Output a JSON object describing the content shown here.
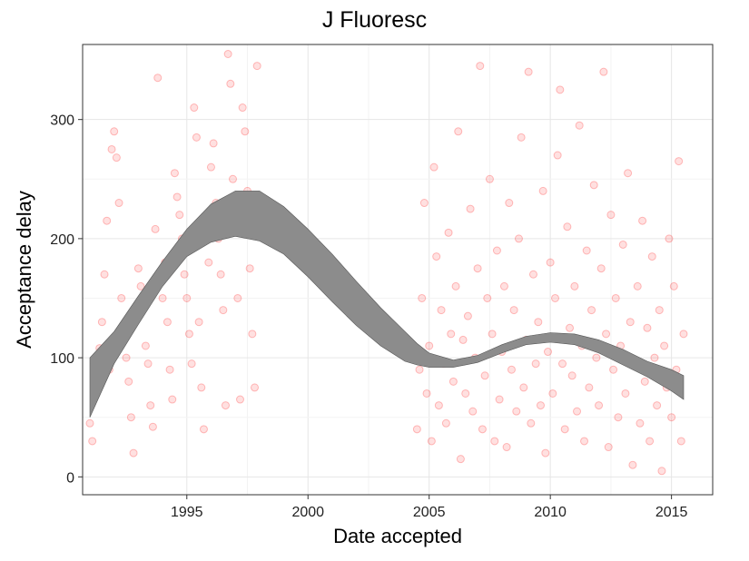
{
  "chart_data": {
    "type": "scatter",
    "title": "J Fluoresc",
    "xlabel": "Date accepted",
    "ylabel": "Acceptance delay",
    "xlim": [
      1990.7,
      2016.7
    ],
    "ylim": [
      -15,
      363
    ],
    "x_ticks": [
      1995,
      2000,
      2005,
      2010,
      2015
    ],
    "x_tick_labels": [
      "1995",
      "2000",
      "2005",
      "2010",
      "2015"
    ],
    "y_ticks": [
      0,
      100,
      200,
      300
    ],
    "y_tick_labels": [
      "0",
      "100",
      "200",
      "300"
    ],
    "grid": true,
    "legend": "none",
    "points": [
      [
        1991.0,
        45
      ],
      [
        1991.1,
        30
      ],
      [
        1991.2,
        78
      ],
      [
        1991.4,
        108
      ],
      [
        1991.5,
        130
      ],
      [
        1991.6,
        170
      ],
      [
        1991.7,
        215
      ],
      [
        1991.8,
        90
      ],
      [
        1991.9,
        275
      ],
      [
        1992.0,
        290
      ],
      [
        1992.1,
        268
      ],
      [
        1992.2,
        230
      ],
      [
        1992.3,
        150
      ],
      [
        1992.4,
        120
      ],
      [
        1992.5,
        100
      ],
      [
        1992.6,
        80
      ],
      [
        1992.7,
        50
      ],
      [
        1992.8,
        20
      ],
      [
        1992.9,
        140
      ],
      [
        1993.0,
        175
      ],
      [
        1993.1,
        160
      ],
      [
        1993.2,
        145
      ],
      [
        1993.3,
        110
      ],
      [
        1993.4,
        95
      ],
      [
        1993.5,
        60
      ],
      [
        1993.6,
        42
      ],
      [
        1993.7,
        208
      ],
      [
        1993.8,
        335
      ],
      [
        1994.0,
        150
      ],
      [
        1994.1,
        180
      ],
      [
        1994.2,
        130
      ],
      [
        1994.3,
        90
      ],
      [
        1994.4,
        65
      ],
      [
        1994.5,
        255
      ],
      [
        1994.6,
        235
      ],
      [
        1994.7,
        220
      ],
      [
        1994.8,
        200
      ],
      [
        1994.9,
        170
      ],
      [
        1995.0,
        150
      ],
      [
        1995.1,
        120
      ],
      [
        1995.2,
        95
      ],
      [
        1995.3,
        310
      ],
      [
        1995.4,
        285
      ],
      [
        1995.5,
        130
      ],
      [
        1995.6,
        75
      ],
      [
        1995.7,
        40
      ],
      [
        1995.8,
        215
      ],
      [
        1995.9,
        180
      ],
      [
        1996.0,
        260
      ],
      [
        1996.1,
        280
      ],
      [
        1996.2,
        230
      ],
      [
        1996.3,
        200
      ],
      [
        1996.4,
        170
      ],
      [
        1996.5,
        140
      ],
      [
        1996.6,
        60
      ],
      [
        1996.7,
        355
      ],
      [
        1996.8,
        330
      ],
      [
        1996.9,
        250
      ],
      [
        1997.0,
        225
      ],
      [
        1997.1,
        150
      ],
      [
        1997.2,
        65
      ],
      [
        1997.3,
        310
      ],
      [
        1997.4,
        290
      ],
      [
        1997.5,
        240
      ],
      [
        1997.6,
        175
      ],
      [
        1997.7,
        120
      ],
      [
        1997.8,
        75
      ],
      [
        1997.9,
        345
      ],
      [
        2004.5,
        40
      ],
      [
        2004.6,
        90
      ],
      [
        2004.7,
        150
      ],
      [
        2004.8,
        230
      ],
      [
        2004.9,
        70
      ],
      [
        2005.0,
        110
      ],
      [
        2005.1,
        30
      ],
      [
        2005.2,
        260
      ],
      [
        2005.3,
        185
      ],
      [
        2005.4,
        60
      ],
      [
        2005.5,
        140
      ],
      [
        2005.6,
        95
      ],
      [
        2005.7,
        45
      ],
      [
        2005.8,
        205
      ],
      [
        2005.9,
        120
      ],
      [
        2006.0,
        80
      ],
      [
        2006.1,
        160
      ],
      [
        2006.2,
        290
      ],
      [
        2006.3,
        15
      ],
      [
        2006.4,
        115
      ],
      [
        2006.5,
        70
      ],
      [
        2006.6,
        135
      ],
      [
        2006.7,
        225
      ],
      [
        2006.8,
        55
      ],
      [
        2006.9,
        100
      ],
      [
        2007.0,
        175
      ],
      [
        2007.1,
        345
      ],
      [
        2007.2,
        40
      ],
      [
        2007.3,
        85
      ],
      [
        2007.4,
        150
      ],
      [
        2007.5,
        250
      ],
      [
        2007.6,
        120
      ],
      [
        2007.7,
        30
      ],
      [
        2007.8,
        190
      ],
      [
        2007.9,
        65
      ],
      [
        2008.0,
        105
      ],
      [
        2008.1,
        160
      ],
      [
        2008.2,
        25
      ],
      [
        2008.3,
        230
      ],
      [
        2008.4,
        90
      ],
      [
        2008.5,
        140
      ],
      [
        2008.6,
        55
      ],
      [
        2008.7,
        200
      ],
      [
        2008.8,
        285
      ],
      [
        2008.9,
        75
      ],
      [
        2009.0,
        115
      ],
      [
        2009.1,
        340
      ],
      [
        2009.2,
        45
      ],
      [
        2009.3,
        170
      ],
      [
        2009.4,
        95
      ],
      [
        2009.5,
        130
      ],
      [
        2009.6,
        60
      ],
      [
        2009.7,
        240
      ],
      [
        2009.8,
        20
      ],
      [
        2009.9,
        105
      ],
      [
        2010.0,
        180
      ],
      [
        2010.1,
        70
      ],
      [
        2010.2,
        150
      ],
      [
        2010.3,
        270
      ],
      [
        2010.4,
        325
      ],
      [
        2010.5,
        95
      ],
      [
        2010.6,
        40
      ],
      [
        2010.7,
        210
      ],
      [
        2010.8,
        125
      ],
      [
        2010.9,
        85
      ],
      [
        2011.0,
        160
      ],
      [
        2011.1,
        55
      ],
      [
        2011.2,
        295
      ],
      [
        2011.3,
        110
      ],
      [
        2011.4,
        30
      ],
      [
        2011.5,
        190
      ],
      [
        2011.6,
        75
      ],
      [
        2011.7,
        140
      ],
      [
        2011.8,
        245
      ],
      [
        2011.9,
        100
      ],
      [
        2012.0,
        60
      ],
      [
        2012.1,
        175
      ],
      [
        2012.2,
        340
      ],
      [
        2012.3,
        120
      ],
      [
        2012.4,
        25
      ],
      [
        2012.5,
        220
      ],
      [
        2012.6,
        90
      ],
      [
        2012.7,
        150
      ],
      [
        2012.8,
        50
      ],
      [
        2012.9,
        110
      ],
      [
        2013.0,
        195
      ],
      [
        2013.1,
        70
      ],
      [
        2013.2,
        255
      ],
      [
        2013.3,
        130
      ],
      [
        2013.4,
        10
      ],
      [
        2013.5,
        95
      ],
      [
        2013.6,
        160
      ],
      [
        2013.7,
        45
      ],
      [
        2013.8,
        215
      ],
      [
        2013.9,
        80
      ],
      [
        2014.0,
        125
      ],
      [
        2014.1,
        30
      ],
      [
        2014.2,
        185
      ],
      [
        2014.3,
        100
      ],
      [
        2014.4,
        60
      ],
      [
        2014.5,
        140
      ],
      [
        2014.6,
        5
      ],
      [
        2014.7,
        110
      ],
      [
        2014.8,
        75
      ],
      [
        2014.9,
        200
      ],
      [
        2015.0,
        50
      ],
      [
        2015.1,
        160
      ],
      [
        2015.2,
        90
      ],
      [
        2015.3,
        265
      ],
      [
        2015.4,
        30
      ],
      [
        2015.5,
        120
      ]
    ],
    "smooth": {
      "x": [
        1991.0,
        1992,
        1993,
        1994,
        1995,
        1996,
        1997,
        1998,
        1999,
        2000,
        2001,
        2002,
        2003,
        2004,
        2004.5,
        2005,
        2006,
        2007,
        2008,
        2009,
        2010,
        2011,
        2012,
        2013,
        2014,
        2015,
        2015.5
      ],
      "lower": [
        50,
        95,
        128,
        160,
        185,
        197,
        202,
        198,
        187,
        168,
        147,
        127,
        110,
        97,
        94,
        92,
        92,
        96,
        104,
        111,
        113,
        111,
        104,
        94,
        84,
        72,
        65
      ],
      "upper": [
        100,
        122,
        152,
        181,
        208,
        229,
        240,
        240,
        227,
        208,
        187,
        164,
        142,
        122,
        112,
        104,
        98,
        102,
        111,
        118,
        121,
        120,
        115,
        107,
        97,
        90,
        85
      ]
    },
    "point_color": "#ff0000",
    "band_color": "#8c8c8c",
    "band_edge_color": "#555555"
  }
}
